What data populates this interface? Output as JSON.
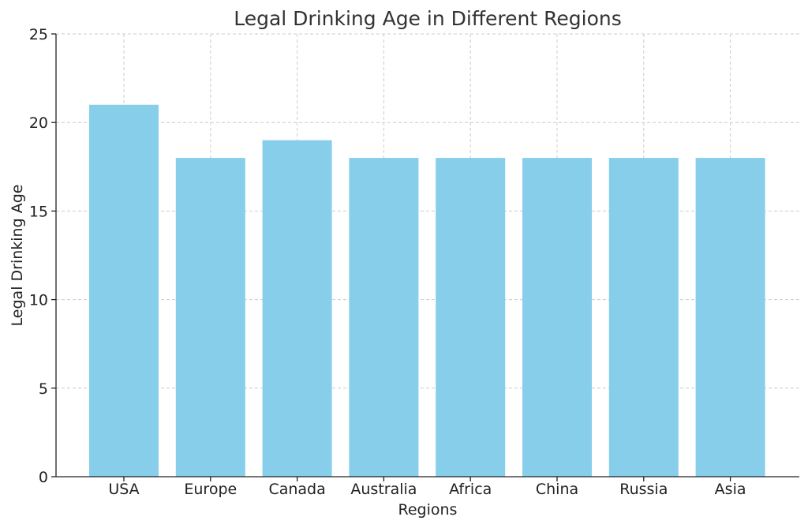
{
  "chart_data": {
    "type": "bar",
    "title": "Legal Drinking Age in Different Regions",
    "xlabel": "Regions",
    "ylabel": "Legal Drinking Age",
    "categories": [
      "USA",
      "Europe",
      "Canada",
      "Australia",
      "Africa",
      "China",
      "Russia",
      "Asia"
    ],
    "values": [
      21,
      18,
      19,
      18,
      18,
      18,
      18,
      18
    ],
    "ylim": [
      0,
      25
    ],
    "yticks": [
      0,
      5,
      10,
      15,
      20,
      25
    ],
    "grid": true,
    "bar_color": "#87CEEB"
  }
}
